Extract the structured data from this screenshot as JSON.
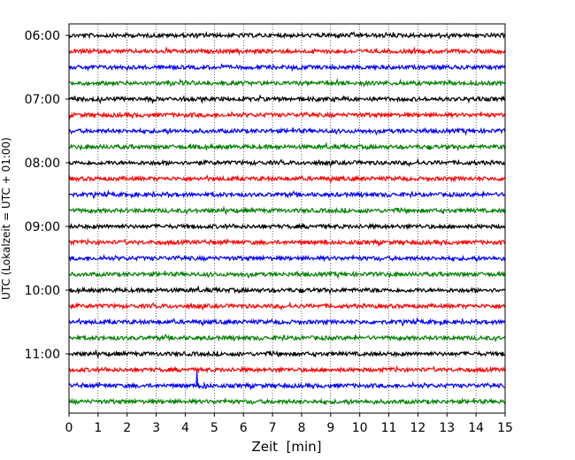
{
  "chart_data": {
    "type": "line",
    "title": "",
    "xlabel": "Zeit  [min]",
    "ylabel": "UTC (Lokalzeit = UTC + 01:00)",
    "xlim": [
      0,
      15
    ],
    "x_ticks": [
      "0",
      "1",
      "2",
      "3",
      "4",
      "5",
      "6",
      "7",
      "8",
      "9",
      "10",
      "11",
      "12",
      "13",
      "14",
      "15"
    ],
    "y_ticks": [
      "06:00",
      "07:00",
      "08:00",
      "09:00",
      "10:00",
      "11:00"
    ],
    "grid": "vertical dotted",
    "trace_interval_min": 15,
    "trace_colors": [
      "#000000",
      "#ff0000",
      "#0000ff",
      "#008000"
    ],
    "traces": [
      {
        "start": "06:00",
        "color": "#000000"
      },
      {
        "start": "06:15",
        "color": "#ff0000"
      },
      {
        "start": "06:30",
        "color": "#0000ff"
      },
      {
        "start": "06:45",
        "color": "#008000"
      },
      {
        "start": "07:00",
        "color": "#000000"
      },
      {
        "start": "07:15",
        "color": "#ff0000"
      },
      {
        "start": "07:30",
        "color": "#0000ff"
      },
      {
        "start": "07:45",
        "color": "#008000"
      },
      {
        "start": "08:00",
        "color": "#000000"
      },
      {
        "start": "08:15",
        "color": "#ff0000"
      },
      {
        "start": "08:30",
        "color": "#0000ff"
      },
      {
        "start": "08:45",
        "color": "#008000"
      },
      {
        "start": "09:00",
        "color": "#000000"
      },
      {
        "start": "09:15",
        "color": "#ff0000"
      },
      {
        "start": "09:30",
        "color": "#0000ff"
      },
      {
        "start": "09:45",
        "color": "#008000"
      },
      {
        "start": "10:00",
        "color": "#000000"
      },
      {
        "start": "10:15",
        "color": "#ff0000"
      },
      {
        "start": "10:30",
        "color": "#0000ff"
      },
      {
        "start": "10:45",
        "color": "#008000"
      },
      {
        "start": "11:00",
        "color": "#000000"
      },
      {
        "start": "11:15",
        "color": "#ff0000"
      },
      {
        "start": "11:30",
        "color": "#0000ff",
        "spike_at_min": 4.4
      },
      {
        "start": "11:45",
        "color": "#008000"
      }
    ]
  }
}
